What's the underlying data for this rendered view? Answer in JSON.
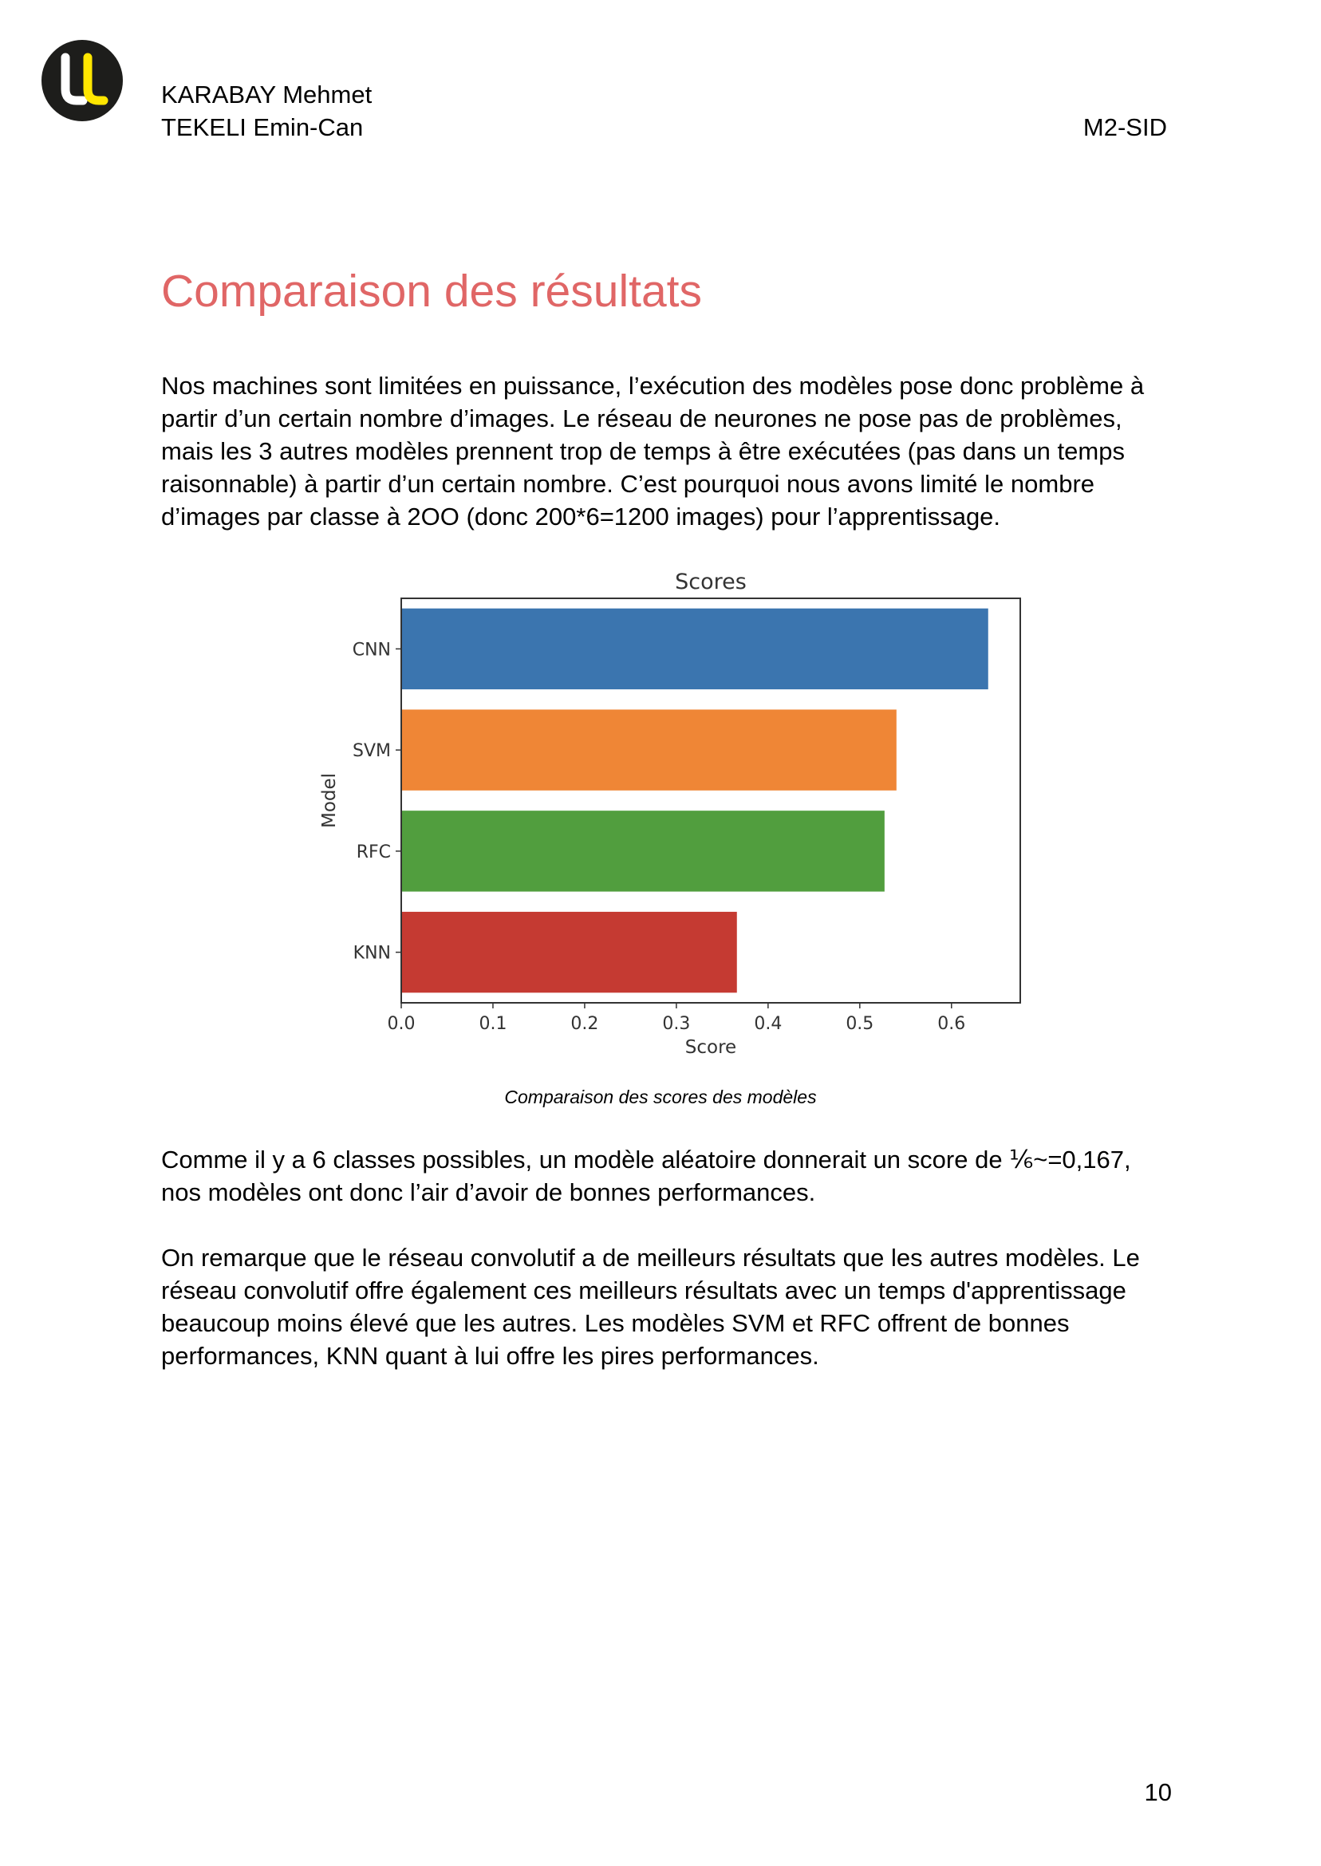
{
  "header": {
    "authors": [
      "KARABAY Mehmet",
      "TEKELI Emin-Can"
    ],
    "program": "M2-SID"
  },
  "logo": {
    "icon": "university-ul-logo-icon",
    "colors": {
      "circle": "#1d1d1b",
      "letters": "#ffffff",
      "accent": "#ffe600"
    }
  },
  "section": {
    "title": "Comparaison des résultats"
  },
  "paragraphs": {
    "intro": "Nos machines sont limitées en puissance, l’exécution des modèles pose donc problème à partir d’un certain nombre d’images. Le réseau de neurones ne pose pas de problèmes, mais les 3 autres modèles prennent trop de temps à être exécutées (pas dans un temps raisonnable) à partir d’un certain nombre. C’est pourquoi nous avons limité le nombre d’images par classe à 2OO (donc 200*6=1200 images) pour l’apprentissage.",
    "random_baseline": "Comme il y a 6 classes possibles, un modèle aléatoire donnerait un score de ⅙~=0,167, nos modèles ont donc l’air d’avoir de bonnes performances.",
    "conclusion": "On remarque que le réseau convolutif a de meilleurs résultats que les autres modèles. Le réseau convolutif offre également ces meilleurs résultats avec un temps d'apprentissage beaucoup moins élevé que les autres. Les modèles SVM et RFC offrent de bonnes performances, KNN quant à lui offre les pires performances."
  },
  "figure": {
    "caption": "Comparaison des scores des modèles"
  },
  "chart_data": {
    "type": "bar",
    "orientation": "horizontal",
    "title": "Scores",
    "xlabel": "Score",
    "ylabel": "Model",
    "categories": [
      "CNN",
      "SVM",
      "RFC",
      "KNN"
    ],
    "values": [
      0.64,
      0.54,
      0.527,
      0.366
    ],
    "colors": [
      "#3b75af",
      "#ef8636",
      "#519e3e",
      "#c53a32"
    ],
    "xlim": [
      0,
      0.675
    ],
    "xticks": [
      "0.0",
      "0.1",
      "0.2",
      "0.3",
      "0.4",
      "0.5",
      "0.6"
    ],
    "grid": false
  },
  "footer": {
    "page_number": "10"
  }
}
